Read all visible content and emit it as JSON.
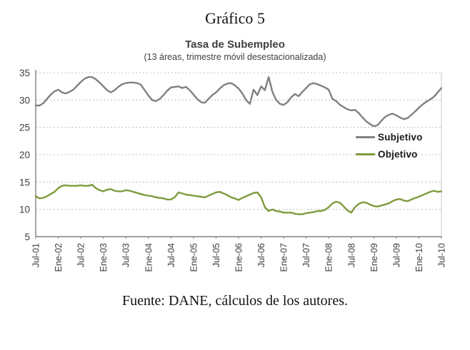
{
  "page": {
    "figure_label": "Gráfico 5",
    "source": "Fuente: DANE, cálculos de los autores."
  },
  "chart_data": {
    "type": "line",
    "title": "Tasa de Subempleo",
    "subtitle": "(13 áreas, trimestre móvil desestacionalizada)",
    "background": "#ffffff",
    "ylim": [
      5,
      35
    ],
    "yticks": [
      5,
      10,
      15,
      20,
      25,
      30,
      35
    ],
    "grid": "horizontal-dashed",
    "gridline_color": "#c2c2c2",
    "axis_color": "#808080",
    "tick_label_color": "#3f3f3f",
    "legend_position": "inside-middle-right",
    "x_frequency": "monthly",
    "x_start": "Jul-01",
    "x_end": "Jul-10",
    "x_tick_every_months": 6,
    "x_tick_labels": [
      "Jul-01",
      "Ene-02",
      "Jul-02",
      "Ene-03",
      "Jul-03",
      "Ene-04",
      "Jul-04",
      "Ene-05",
      "Jul-05",
      "Ene-06",
      "Jul-06",
      "Ene-07",
      "Jul-07",
      "Ene-08",
      "Jul-08",
      "Ene-09",
      "Jul-09",
      "Ene-10",
      "Jul-10"
    ],
    "x_label_rotation": -90,
    "series": [
      {
        "name": "Subjetivo",
        "color": "#808080",
        "values": [
          29.0,
          29.0,
          29.4,
          30.2,
          31.0,
          31.6,
          31.9,
          31.4,
          31.2,
          31.5,
          31.9,
          32.6,
          33.3,
          33.9,
          34.2,
          34.2,
          33.8,
          33.2,
          32.5,
          31.8,
          31.4,
          31.8,
          32.4,
          32.9,
          33.1,
          33.2,
          33.2,
          33.1,
          32.8,
          31.8,
          30.8,
          30.0,
          29.8,
          30.2,
          30.9,
          31.7,
          32.3,
          32.4,
          32.5,
          32.2,
          32.4,
          31.8,
          31.0,
          30.2,
          29.6,
          29.5,
          30.2,
          30.9,
          31.4,
          32.1,
          32.7,
          33.0,
          33.1,
          32.7,
          32.1,
          31.2,
          30.0,
          29.3,
          31.9,
          30.9,
          32.5,
          31.8,
          34.2,
          31.5,
          30.0,
          29.3,
          29.1,
          29.6,
          30.5,
          31.1,
          30.7,
          31.5,
          32.2,
          32.9,
          33.1,
          32.9,
          32.6,
          32.3,
          31.9,
          30.2,
          29.8,
          29.1,
          28.7,
          28.3,
          28.1,
          28.2,
          27.6,
          26.8,
          26.1,
          25.6,
          25.2,
          25.4,
          26.2,
          26.9,
          27.3,
          27.5,
          27.2,
          26.8,
          26.5,
          26.7,
          27.3,
          27.9,
          28.6,
          29.2,
          29.7,
          30.1,
          30.6,
          31.4,
          32.2
        ]
      },
      {
        "name": "Objetivo",
        "color": "#7f9a3e",
        "values": [
          12.4,
          12.0,
          12.1,
          12.4,
          12.8,
          13.2,
          13.9,
          14.3,
          14.4,
          14.3,
          14.3,
          14.3,
          14.4,
          14.3,
          14.3,
          14.5,
          13.9,
          13.5,
          13.3,
          13.6,
          13.7,
          13.4,
          13.3,
          13.3,
          13.5,
          13.4,
          13.2,
          13.0,
          12.8,
          12.6,
          12.5,
          12.4,
          12.2,
          12.1,
          12.0,
          11.8,
          11.8,
          12.2,
          13.1,
          12.9,
          12.7,
          12.6,
          12.5,
          12.4,
          12.3,
          12.2,
          12.5,
          12.8,
          13.1,
          13.2,
          12.9,
          12.6,
          12.2,
          12.0,
          11.7,
          12.1,
          12.4,
          12.7,
          13.0,
          13.1,
          12.2,
          10.4,
          9.7,
          10.0,
          9.7,
          9.6,
          9.4,
          9.4,
          9.4,
          9.2,
          9.1,
          9.1,
          9.3,
          9.4,
          9.5,
          9.7,
          9.7,
          9.9,
          10.4,
          11.1,
          11.4,
          11.2,
          10.5,
          9.8,
          9.4,
          10.4,
          11.0,
          11.3,
          11.2,
          10.9,
          10.6,
          10.5,
          10.7,
          10.9,
          11.1,
          11.5,
          11.8,
          11.9,
          11.6,
          11.5,
          11.8,
          12.1,
          12.3,
          12.6,
          12.9,
          13.2,
          13.4,
          13.2,
          13.3
        ]
      }
    ]
  }
}
